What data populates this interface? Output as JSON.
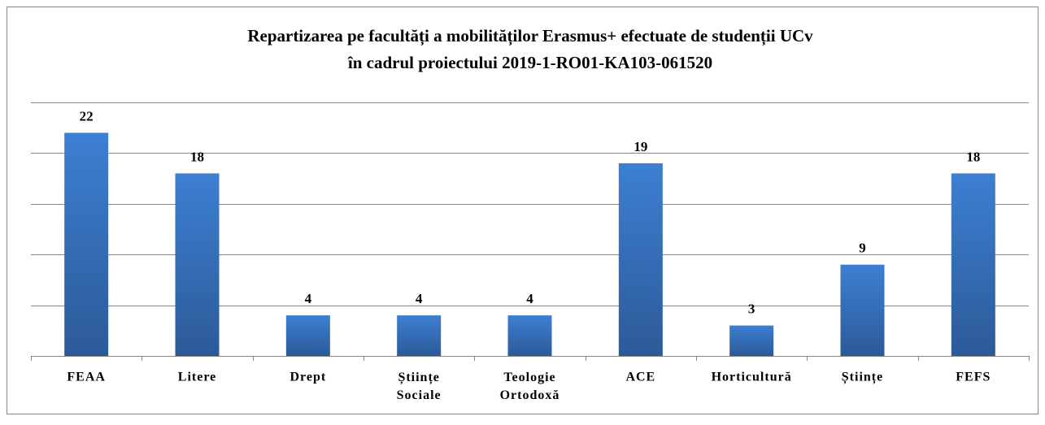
{
  "chart_data": {
    "type": "bar",
    "title": [
      "Repartizarea pe facultăți  a mobilităților  Erasmus+  efectuate de studenții  UCv",
      "în cadrul  proiectului  2019-1-RO01-KA103-061520"
    ],
    "categories": [
      "FEAA",
      "Litere",
      "Drept",
      "Științe Sociale",
      "Teologie Ortodoxă",
      "ACE",
      "Horticultură",
      "Științe",
      "FEFS"
    ],
    "values": [
      22,
      18,
      4,
      4,
      4,
      19,
      3,
      9,
      18
    ],
    "color": "#3a75c4",
    "ylim": [
      0,
      25
    ],
    "yticks": [
      0,
      5,
      10,
      15,
      20,
      25
    ],
    "grid": true
  }
}
